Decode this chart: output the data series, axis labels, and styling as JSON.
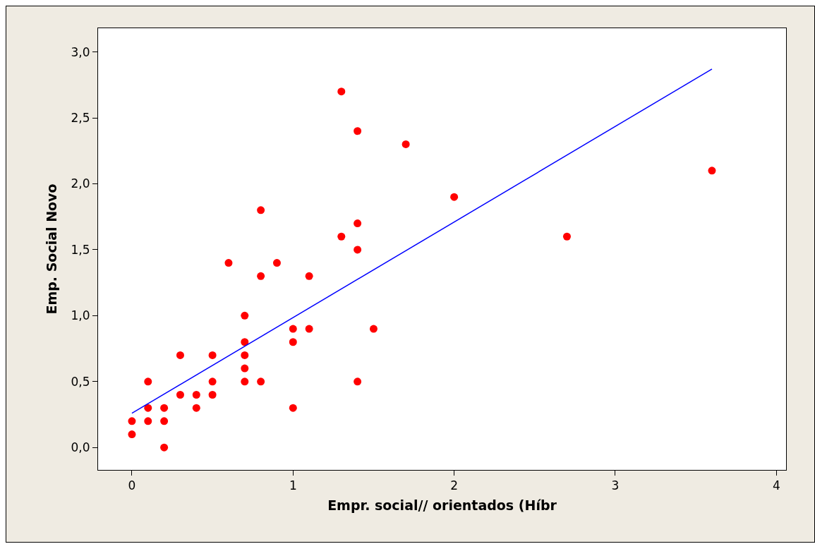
{
  "chart_data": {
    "type": "scatter",
    "xlabel": "Empr. social// orientados (Híbr",
    "ylabel": "Emp. Social Novo",
    "xlim": [
      -0.21,
      4.06
    ],
    "ylim": [
      -0.17,
      3.18
    ],
    "xticks": [
      0,
      1,
      2,
      3,
      4
    ],
    "yticks": [
      {
        "value": 0,
        "label": "0,0"
      },
      {
        "value": 0.5,
        "label": "0,5"
      },
      {
        "value": 1,
        "label": "1,0"
      },
      {
        "value": 1.5,
        "label": "1,5"
      },
      {
        "value": 2,
        "label": "2,0"
      },
      {
        "value": 2.5,
        "label": "2,5"
      },
      {
        "value": 3,
        "label": "3,0"
      }
    ],
    "grid": false,
    "legend": false,
    "marker": "circle",
    "series": [
      {
        "color": "#ff0000",
        "x": [
          0,
          0,
          0.1,
          0.1,
          0.1,
          0.2,
          0.2,
          0.2,
          0.3,
          0.3,
          0.4,
          0.4,
          0.5,
          0.5,
          0.5,
          0.6,
          0.7,
          0.7,
          0.7,
          0.7,
          0.7,
          0.8,
          0.8,
          0.8,
          0.9,
          1.0,
          1.0,
          1.0,
          1.1,
          1.1,
          1.3,
          1.3,
          1.4,
          1.4,
          1.4,
          1.4,
          1.5,
          1.7,
          2.0,
          2.7,
          3.6
        ],
        "values": [
          0.2,
          0.1,
          0.5,
          0.3,
          0.2,
          0.3,
          0.2,
          0.0,
          0.7,
          0.4,
          0.4,
          0.3,
          0.7,
          0.5,
          0.4,
          1.4,
          1.0,
          0.8,
          0.7,
          0.6,
          0.5,
          1.8,
          1.3,
          0.5,
          1.4,
          0.9,
          0.8,
          0.3,
          1.3,
          0.9,
          2.7,
          1.6,
          2.4,
          1.7,
          1.5,
          0.5,
          0.9,
          2.3,
          1.9,
          1.6,
          2.1
        ]
      },
      {
        "type": "line",
        "color": "#0000ff",
        "line_style": "solid",
        "marker": "none",
        "x": [
          0,
          3.6
        ],
        "values": [
          0.26,
          2.87
        ]
      }
    ]
  }
}
